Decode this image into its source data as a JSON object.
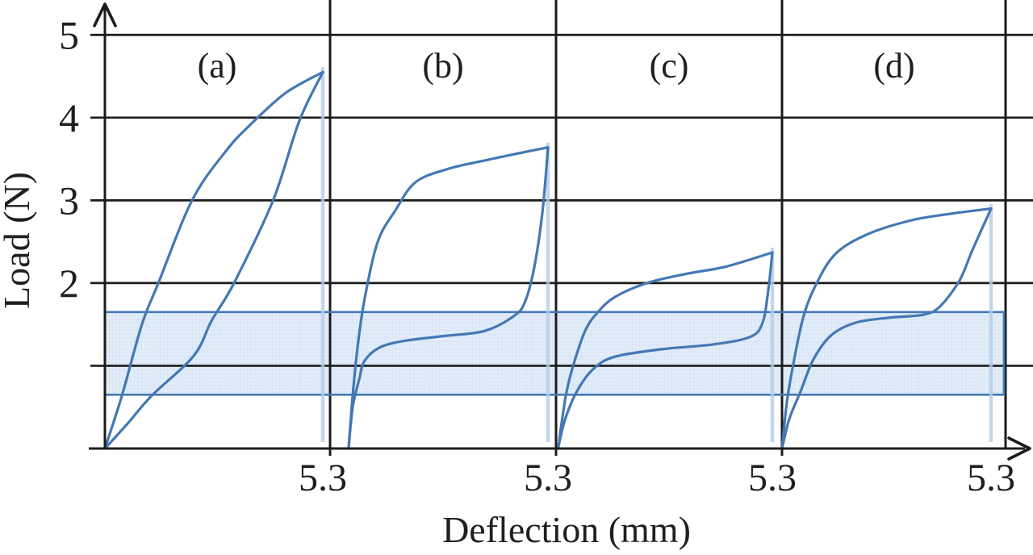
{
  "chart_data": {
    "type": "line",
    "title": "",
    "xlabel": "Deflection (mm)",
    "ylabel": "Load (N)",
    "ylim": [
      0,
      5.45
    ],
    "xlim_per_panel": [
      0,
      5.55
    ],
    "grid": true,
    "y_ticks": [
      1,
      2,
      3,
      4,
      5
    ],
    "y_tick_labels": [
      "",
      "2",
      "3",
      "4",
      "5"
    ],
    "x_tick_value": 5.3,
    "x_tick_label": "5.3",
    "band": {
      "from_load_N": 0.65,
      "to_load_N": 1.65
    },
    "colors": {
      "curve": "#4478b4",
      "band_fill": "#e3edf9",
      "band_pattern_line": "#cfdff2",
      "band_edge": "#4478b4",
      "deflection_marker": "#b4cdea",
      "axis_black": "#1b1b1b",
      "text": "#1f1f1f"
    },
    "panels": [
      {
        "label": "(a)",
        "peak_load_N": 4.55,
        "peak_deflection_mm": 5.3,
        "loading": [
          [
            0,
            0
          ],
          [
            0.42,
            0.65
          ],
          [
            0.9,
            1.5
          ],
          [
            1.3,
            2.0
          ],
          [
            2.12,
            3.0
          ],
          [
            2.95,
            3.6
          ],
          [
            3.55,
            3.92
          ],
          [
            4.4,
            4.3
          ],
          [
            5.3,
            4.55
          ]
        ],
        "unloading": [
          [
            5.3,
            4.55
          ],
          [
            4.72,
            3.95
          ],
          [
            4.09,
            3.0
          ],
          [
            3.14,
            2.0
          ],
          [
            2.6,
            1.55
          ],
          [
            2.16,
            1.12
          ],
          [
            1.14,
            0.64
          ],
          [
            0.55,
            0.3
          ],
          [
            0,
            0
          ]
        ]
      },
      {
        "label": "(b)",
        "peak_load_N": 3.64,
        "peak_deflection_mm": 5.3,
        "loading": [
          [
            0.45,
            0
          ],
          [
            0.55,
            0.64
          ],
          [
            0.67,
            1.23
          ],
          [
            0.84,
            1.81
          ],
          [
            1.16,
            2.5
          ],
          [
            1.59,
            2.88
          ],
          [
            2.08,
            3.22
          ],
          [
            2.87,
            3.38
          ],
          [
            3.75,
            3.48
          ],
          [
            4.5,
            3.56
          ],
          [
            5.3,
            3.64
          ]
        ],
        "unloading": [
          [
            5.3,
            3.64
          ],
          [
            5.17,
            2.88
          ],
          [
            4.97,
            2.2
          ],
          [
            4.73,
            1.76
          ],
          [
            4.44,
            1.59
          ],
          [
            3.75,
            1.42
          ],
          [
            2.77,
            1.36
          ],
          [
            1.79,
            1.3
          ],
          [
            1.2,
            1.22
          ],
          [
            0.84,
            1.06
          ],
          [
            0.71,
            0.84
          ],
          [
            0.55,
            0.5
          ],
          [
            0.45,
            0
          ]
        ]
      },
      {
        "label": "(c)",
        "peak_load_N": 2.37,
        "peak_deflection_mm": 5.3,
        "loading": [
          [
            0.05,
            0
          ],
          [
            0.24,
            0.64
          ],
          [
            0.42,
            1.0
          ],
          [
            0.71,
            1.42
          ],
          [
            1.01,
            1.64
          ],
          [
            1.44,
            1.83
          ],
          [
            2.23,
            2.0
          ],
          [
            3.18,
            2.11
          ],
          [
            4.17,
            2.2
          ],
          [
            5.3,
            2.37
          ]
        ],
        "unloading": [
          [
            5.3,
            2.37
          ],
          [
            5.2,
            1.91
          ],
          [
            5.06,
            1.52
          ],
          [
            4.76,
            1.35
          ],
          [
            3.87,
            1.26
          ],
          [
            2.59,
            1.2
          ],
          [
            1.44,
            1.11
          ],
          [
            0.91,
            0.96
          ],
          [
            0.51,
            0.69
          ],
          [
            0.22,
            0.35
          ],
          [
            0.05,
            0
          ]
        ]
      },
      {
        "label": "(d)",
        "peak_load_N": 2.9,
        "peak_deflection_mm": 5.3,
        "loading": [
          [
            0,
            0
          ],
          [
            0.12,
            0.55
          ],
          [
            0.27,
            0.98
          ],
          [
            0.53,
            1.57
          ],
          [
            0.84,
            1.96
          ],
          [
            1.35,
            2.35
          ],
          [
            2.17,
            2.59
          ],
          [
            3.29,
            2.76
          ],
          [
            4.3,
            2.84
          ],
          [
            5.3,
            2.9
          ]
        ],
        "unloading": [
          [
            5.3,
            2.9
          ],
          [
            4.83,
            2.4
          ],
          [
            4.5,
            2.03
          ],
          [
            4.01,
            1.72
          ],
          [
            3.6,
            1.62
          ],
          [
            2.68,
            1.58
          ],
          [
            1.86,
            1.52
          ],
          [
            1.25,
            1.37
          ],
          [
            0.8,
            1.08
          ],
          [
            0.47,
            0.69
          ],
          [
            0.18,
            0.35
          ],
          [
            0,
            0
          ]
        ]
      }
    ]
  }
}
